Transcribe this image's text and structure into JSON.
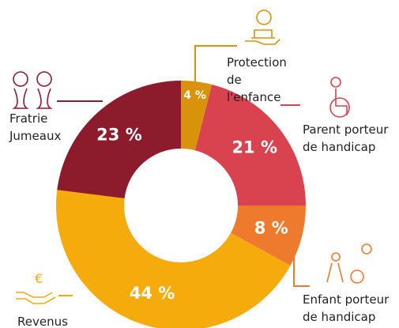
{
  "chart_data": {
    "type": "donut",
    "categories": [
      "Protection de l'enfance",
      "Parent porteur de handicap",
      "Enfant porteur de handicap",
      "Revenus",
      "Fratrie Jumeaux"
    ],
    "values": [
      4,
      21,
      8,
      44,
      23
    ],
    "value_labels": [
      "4 %",
      "21 %",
      "8 %",
      "44 %",
      "23 %"
    ],
    "colors": [
      "#d8930b",
      "#d9434f",
      "#ee7b2d",
      "#f6ab0c",
      "#8c1b2c"
    ]
  }
}
